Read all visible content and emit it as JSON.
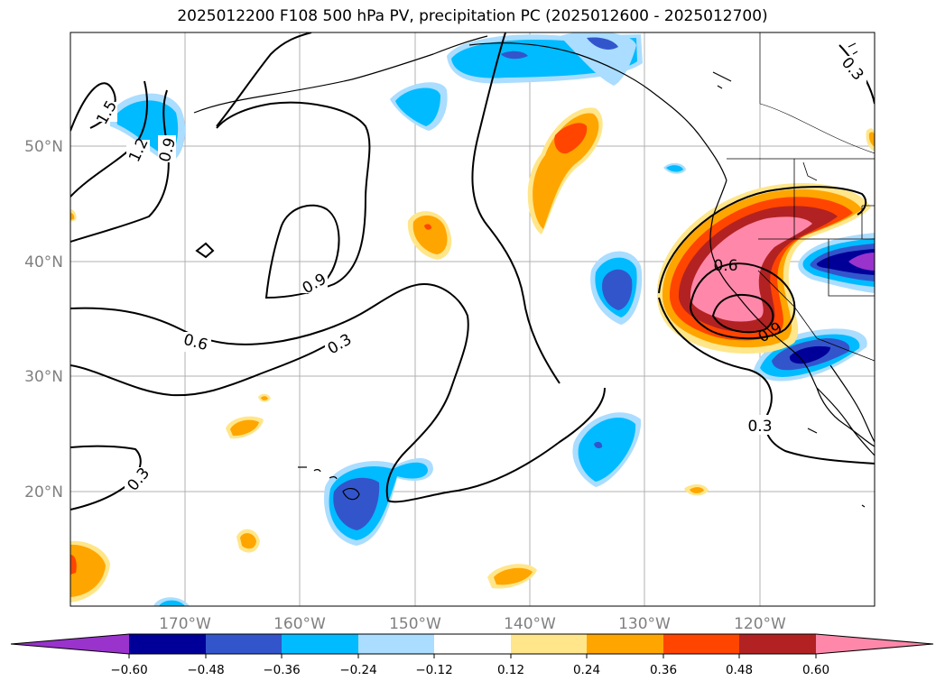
{
  "title": "2025012200 F108 500 hPa PV, precipitation PC (2025012600 - 2025012700)",
  "map": {
    "lat_labels": [
      "50°N",
      "40°N",
      "30°N",
      "20°N"
    ],
    "lon_labels": [
      "170°W",
      "160°W",
      "150°W",
      "140°W",
      "130°W",
      "120°W"
    ],
    "contour_labels": [
      "1.5",
      "1.2",
      "0.9",
      "0.9",
      "0.6",
      "0.3",
      "0.3",
      "0.6",
      "0.9",
      "0.3",
      "0.3"
    ],
    "colors": {
      "neg_060": "#9933cc",
      "neg_048": "#000099",
      "neg_036": "#3355cc",
      "neg_024": "#00bbff",
      "neg_012": "#aaddff",
      "pos_012": "#ffe68a",
      "pos_024": "#ffa500",
      "pos_036": "#ff4500",
      "pos_048": "#b22222",
      "pos_060": "#ff88aa"
    }
  },
  "colorbar": {
    "ticks": [
      "−0.60",
      "−0.48",
      "−0.36",
      "−0.24",
      "−0.12",
      "0.12",
      "0.24",
      "0.36",
      "0.48",
      "0.60"
    ],
    "colors": [
      "#9933cc",
      "#000099",
      "#3355cc",
      "#00bbff",
      "#aaddff",
      "#ffffff",
      "#ffe68a",
      "#ffa500",
      "#ff4500",
      "#b22222",
      "#ff88aa"
    ]
  }
}
